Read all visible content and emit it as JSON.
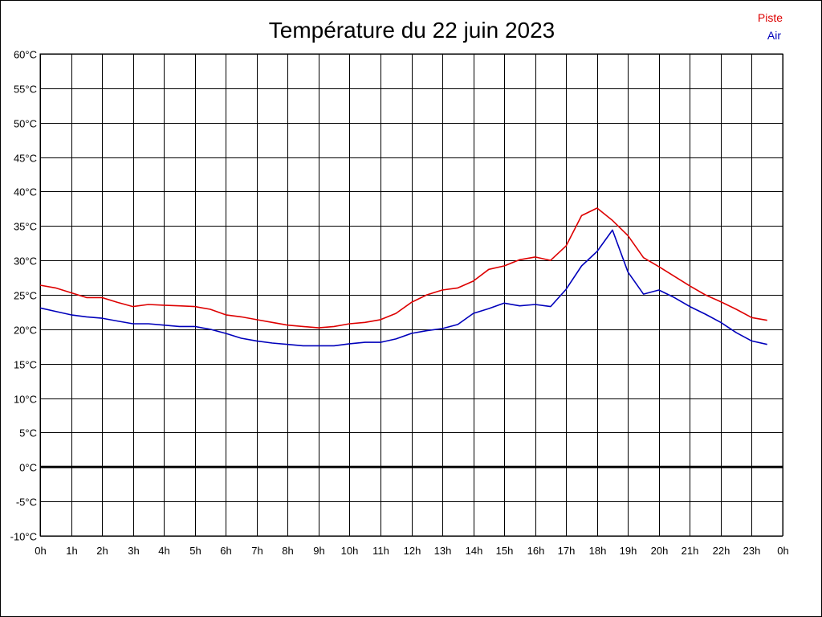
{
  "chart_data": {
    "type": "line",
    "title": "Température du 22 juin 2023",
    "xlabel": "",
    "ylabel": "",
    "x_ticks": [
      "0h",
      "1h",
      "2h",
      "3h",
      "4h",
      "5h",
      "6h",
      "7h",
      "8h",
      "9h",
      "10h",
      "11h",
      "12h",
      "13h",
      "14h",
      "15h",
      "16h",
      "17h",
      "18h",
      "19h",
      "20h",
      "21h",
      "22h",
      "23h",
      "0h"
    ],
    "y_ticks": [
      "-10°C",
      "-5°C",
      "0°C",
      "5°C",
      "10°C",
      "15°C",
      "20°C",
      "25°C",
      "30°C",
      "35°C",
      "40°C",
      "45°C",
      "50°C",
      "55°C",
      "60°C"
    ],
    "xlim": [
      0,
      24
    ],
    "ylim": [
      -10,
      60
    ],
    "grid": true,
    "legend_position": "top-right",
    "x": [
      0,
      0.5,
      1,
      1.5,
      2,
      2.5,
      3,
      3.5,
      4,
      4.5,
      5,
      5.5,
      6,
      6.5,
      7,
      7.5,
      8,
      8.5,
      9,
      9.5,
      10,
      10.5,
      11,
      11.5,
      12,
      12.5,
      13,
      13.5,
      14,
      14.5,
      15,
      15.5,
      16,
      16.5,
      17,
      17.5,
      18,
      18.5,
      19,
      19.5,
      20,
      20.5,
      21,
      21.5,
      22,
      22.5,
      23,
      23.5
    ],
    "series": [
      {
        "name": "Piste",
        "color": "#dd0000",
        "values": [
          26.4,
          26.0,
          25.3,
          24.6,
          24.6,
          23.9,
          23.3,
          23.6,
          23.5,
          23.4,
          23.3,
          22.9,
          22.1,
          21.8,
          21.4,
          21.0,
          20.6,
          20.4,
          20.2,
          20.4,
          20.8,
          21.0,
          21.4,
          22.3,
          23.9,
          25.0,
          25.7,
          26.0,
          27.0,
          28.7,
          29.2,
          30.1,
          30.5,
          30.0,
          32.1,
          36.5,
          37.6,
          35.8,
          33.6,
          30.4,
          29.1,
          27.7,
          26.3,
          25.0,
          24.0,
          22.9,
          21.7,
          21.3
        ]
      },
      {
        "name": "Air",
        "color": "#0000bb",
        "values": [
          23.1,
          22.6,
          22.1,
          21.8,
          21.6,
          21.2,
          20.8,
          20.8,
          20.6,
          20.4,
          20.4,
          20.0,
          19.4,
          18.7,
          18.3,
          18.0,
          17.8,
          17.6,
          17.6,
          17.6,
          17.9,
          18.1,
          18.1,
          18.6,
          19.4,
          19.8,
          20.1,
          20.7,
          22.3,
          23.0,
          23.8,
          23.4,
          23.6,
          23.3,
          25.8,
          29.2,
          31.3,
          34.4,
          28.3,
          25.1,
          25.7,
          24.6,
          23.3,
          22.2,
          21.0,
          19.5,
          18.3,
          17.8
        ]
      }
    ]
  }
}
